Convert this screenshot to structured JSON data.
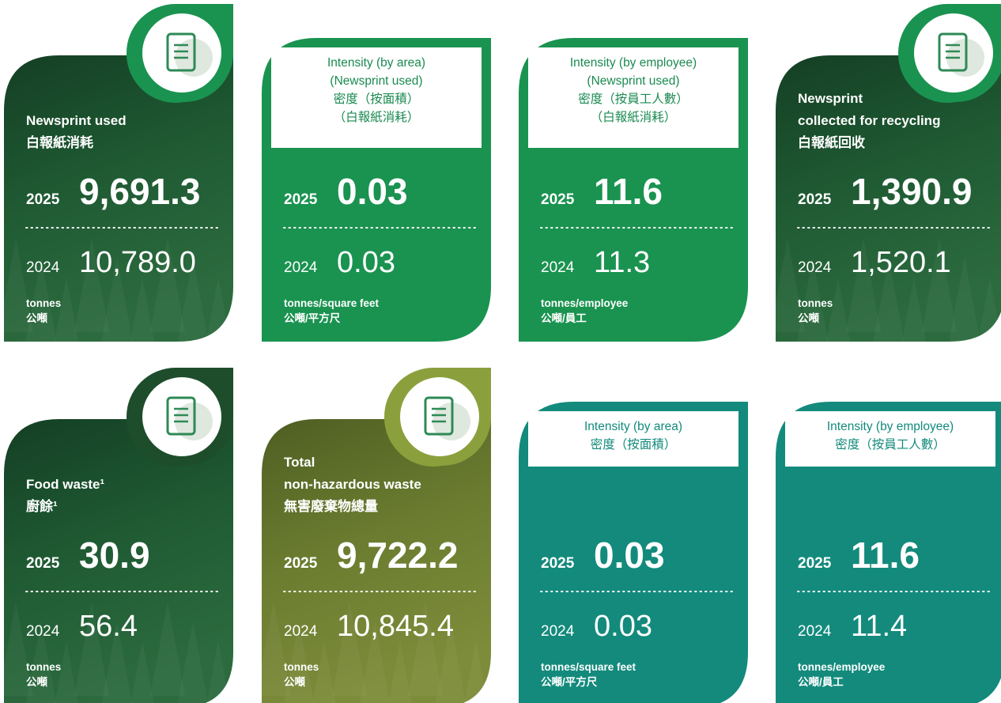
{
  "cards": [
    {
      "title": [
        "Newsprint used",
        "白報紙消耗"
      ],
      "current_year": "2025",
      "current_value": "9,691.3",
      "previous_year": "2024",
      "previous_value": "10,789.0",
      "unit": [
        "tonnes",
        "公噸"
      ]
    },
    {
      "header": [
        "Intensity (by area)",
        "(Newsprint used)",
        "密度（按面積）",
        "（白報紙消耗）"
      ],
      "current_year": "2025",
      "current_value": "0.03",
      "previous_year": "2024",
      "previous_value": "0.03",
      "unit": [
        "tonnes/square feet",
        "公噸/平方尺"
      ]
    },
    {
      "header": [
        "Intensity (by employee)",
        "(Newsprint used)",
        "密度（按員工人數）",
        "（白報紙消耗）"
      ],
      "current_year": "2025",
      "current_value": "11.6",
      "previous_year": "2024",
      "previous_value": "11.3",
      "unit": [
        "tonnes/employee",
        "公噸/員工"
      ]
    },
    {
      "title": [
        "Newsprint",
        "collected for recycling",
        "白報紙回收"
      ],
      "current_year": "2025",
      "current_value": "1,390.9",
      "previous_year": "2024",
      "previous_value": "1,520.1",
      "unit": [
        "tonnes",
        "公噸"
      ]
    },
    {
      "title": [
        "Food waste¹",
        "廚餘¹"
      ],
      "current_year": "2025",
      "current_value": "30.9",
      "previous_year": "2024",
      "previous_value": "56.4",
      "unit": [
        "tonnes",
        "公噸"
      ]
    },
    {
      "title": [
        "Total",
        "non-hazardous waste",
        "無害廢棄物總量"
      ],
      "current_year": "2025",
      "current_value": "9,722.2",
      "previous_year": "2024",
      "previous_value": "10,845.4",
      "unit": [
        "tonnes",
        "公噸"
      ]
    },
    {
      "header": [
        "Intensity (by area)",
        "密度（按面積）"
      ],
      "current_year": "2025",
      "current_value": "0.03",
      "previous_year": "2024",
      "previous_value": "0.03",
      "unit": [
        "tonnes/square feet",
        "公噸/平方尺"
      ]
    },
    {
      "header": [
        "Intensity (by employee)",
        "密度（按員工人數）"
      ],
      "current_year": "2025",
      "current_value": "11.6",
      "previous_year": "2024",
      "previous_value": "11.4",
      "unit": [
        "tonnes/employee",
        "公噸/員工"
      ]
    }
  ]
}
